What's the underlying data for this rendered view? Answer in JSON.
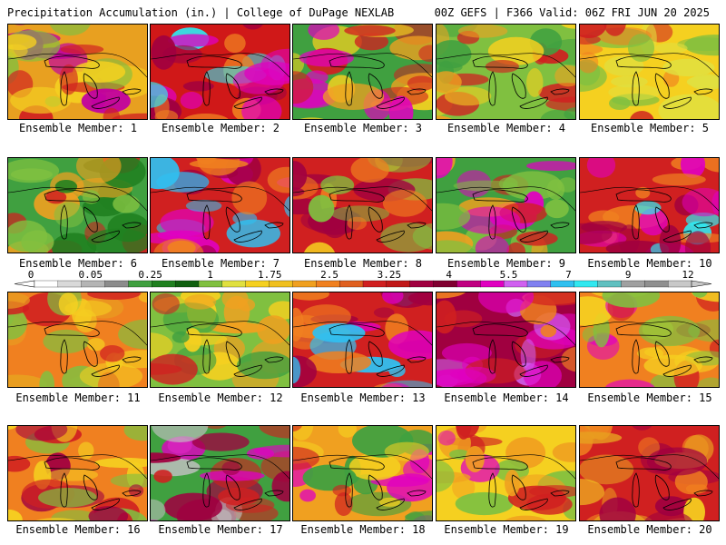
{
  "header": {
    "left": "Precipitation Accumulation (in.) | College of DuPage NEXLAB",
    "right": "00Z GEFS | F366 Valid: 06Z FRI JUN 20 2025"
  },
  "members": [
    {
      "label": "Ensemble Member: 1",
      "palette": [
        "#e8a020",
        "#f5d020",
        "#d02020",
        "#c000a0",
        "#80c040"
      ]
    },
    {
      "label": "Ensemble Member: 2",
      "palette": [
        "#d01818",
        "#a00040",
        "#e000c0",
        "#30e8f0",
        "#f08020"
      ]
    },
    {
      "label": "Ensemble Member: 3",
      "palette": [
        "#40a040",
        "#f0a020",
        "#d02020",
        "#e000c0",
        "#f5d020"
      ]
    },
    {
      "label": "Ensemble Member: 4",
      "palette": [
        "#80c040",
        "#f0a020",
        "#d02020",
        "#40a040",
        "#f5d020"
      ]
    },
    {
      "label": "Ensemble Member: 5",
      "palette": [
        "#f5d020",
        "#80c040",
        "#f08020",
        "#d02020",
        "#e0e040"
      ]
    },
    {
      "label": "Ensemble Member: 6",
      "palette": [
        "#40a040",
        "#80c040",
        "#f0a020",
        "#d02020",
        "#208020"
      ]
    },
    {
      "label": "Ensemble Member: 7",
      "palette": [
        "#d02020",
        "#a00040",
        "#f08020",
        "#30c0f0",
        "#e000c0"
      ]
    },
    {
      "label": "Ensemble Member: 8",
      "palette": [
        "#d02020",
        "#f08020",
        "#80c040",
        "#a00040",
        "#f5d020"
      ]
    },
    {
      "label": "Ensemble Member: 9",
      "palette": [
        "#40a040",
        "#f0a020",
        "#e000c0",
        "#d02020",
        "#80c040"
      ]
    },
    {
      "label": "Ensemble Member: 10",
      "palette": [
        "#d02020",
        "#a00040",
        "#e000c0",
        "#30e8f0",
        "#f08020"
      ]
    },
    {
      "label": "Ensemble Member: 11",
      "palette": [
        "#f08020",
        "#d02020",
        "#f5d020",
        "#80c040",
        "#e8a020"
      ]
    },
    {
      "label": "Ensemble Member: 12",
      "palette": [
        "#80c040",
        "#f0a020",
        "#d02020",
        "#40a040",
        "#f5d020"
      ]
    },
    {
      "label": "Ensemble Member: 13",
      "palette": [
        "#d02020",
        "#a00040",
        "#e000c0",
        "#f08020",
        "#30c0f0"
      ]
    },
    {
      "label": "Ensemble Member: 14",
      "palette": [
        "#a00040",
        "#d02020",
        "#e000c0",
        "#f08020",
        "#d060f0"
      ]
    },
    {
      "label": "Ensemble Member: 15",
      "palette": [
        "#f08020",
        "#d02020",
        "#80c040",
        "#e000c0",
        "#f5d020"
      ]
    },
    {
      "label": "Ensemble Member: 16",
      "palette": [
        "#f08020",
        "#d02020",
        "#f5d020",
        "#80c040",
        "#a00040"
      ]
    },
    {
      "label": "Ensemble Member: 17",
      "palette": [
        "#40a040",
        "#d02020",
        "#a00040",
        "#e000c0",
        "#c0c0c0"
      ]
    },
    {
      "label": "Ensemble Member: 18",
      "palette": [
        "#f0a020",
        "#d02020",
        "#40a040",
        "#e000c0",
        "#f5d020"
      ]
    },
    {
      "label": "Ensemble Member: 19",
      "palette": [
        "#f5d020",
        "#f0a020",
        "#d02020",
        "#e000c0",
        "#80c040"
      ]
    },
    {
      "label": "Ensemble Member: 20",
      "palette": [
        "#d02020",
        "#f08020",
        "#f5d020",
        "#a00040",
        "#e8a020"
      ]
    }
  ],
  "colorbar": {
    "labels": [
      "0",
      "0.05",
      "0.25",
      "1",
      "1.75",
      "2.5",
      "3.25",
      "4",
      "5.5",
      "7",
      "9",
      "12"
    ],
    "colors": [
      "#ffffff",
      "#d9d9d9",
      "#b4b4b4",
      "#8c8c8c",
      "#40a040",
      "#208020",
      "#106010",
      "#80c040",
      "#e0e040",
      "#f5d020",
      "#f0c020",
      "#f0a020",
      "#f08020",
      "#e06020",
      "#d02020",
      "#c01818",
      "#a00040",
      "#800030",
      "#c00080",
      "#e000c0",
      "#d060f0",
      "#8080f0",
      "#30c0f0",
      "#30e8f0",
      "#60c0c0",
      "#a0a0a0",
      "#909090",
      "#c8c8c8"
    ]
  }
}
